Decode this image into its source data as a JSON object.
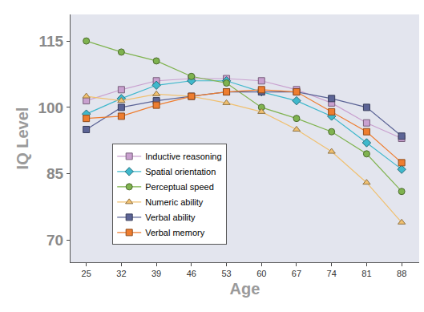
{
  "chart_data": {
    "type": "line",
    "x_label": "Age",
    "y_label": "IQ Level",
    "categories": [
      "25",
      "32",
      "39",
      "46",
      "53",
      "60",
      "67",
      "74",
      "81",
      "88"
    ],
    "ylim": [
      65,
      121
    ],
    "yticks": [
      70,
      85,
      100,
      115
    ],
    "grid": false,
    "legend": "lower left",
    "series": [
      {
        "name": "Inductive reasoning",
        "color": "#c9a0cf",
        "marker": "square",
        "values": [
          101.5,
          104,
          106,
          106.5,
          106.5,
          106,
          104,
          101,
          96.5,
          93
        ]
      },
      {
        "name": "Spatial orientation",
        "color": "#3fb8cc",
        "marker": "diamond",
        "values": [
          98.5,
          102,
          105,
          106,
          106,
          103.5,
          101.5,
          98,
          92,
          86
        ]
      },
      {
        "name": "Perceptual speed",
        "color": "#7fb34f",
        "marker": "circle",
        "values": [
          115,
          112.5,
          110.5,
          107,
          105.5,
          100,
          97.5,
          94.5,
          89.5,
          81
        ]
      },
      {
        "name": "Numeric ability",
        "color": "#f0c070",
        "marker": "triangle-up",
        "values": [
          102.5,
          101.5,
          103,
          102.5,
          101,
          99,
          95,
          90,
          83,
          74
        ]
      },
      {
        "name": "Verbal ability",
        "color": "#5c6496",
        "marker": "square",
        "values": [
          95,
          100,
          101.5,
          102.5,
          103.5,
          103.5,
          103.5,
          102,
          100,
          93.5
        ]
      },
      {
        "name": "Verbal memory",
        "color": "#ee7d2f",
        "marker": "square",
        "values": [
          97.5,
          98,
          100.5,
          102.5,
          103.5,
          104,
          103.5,
          99,
          94.5,
          87.5
        ]
      }
    ]
  }
}
